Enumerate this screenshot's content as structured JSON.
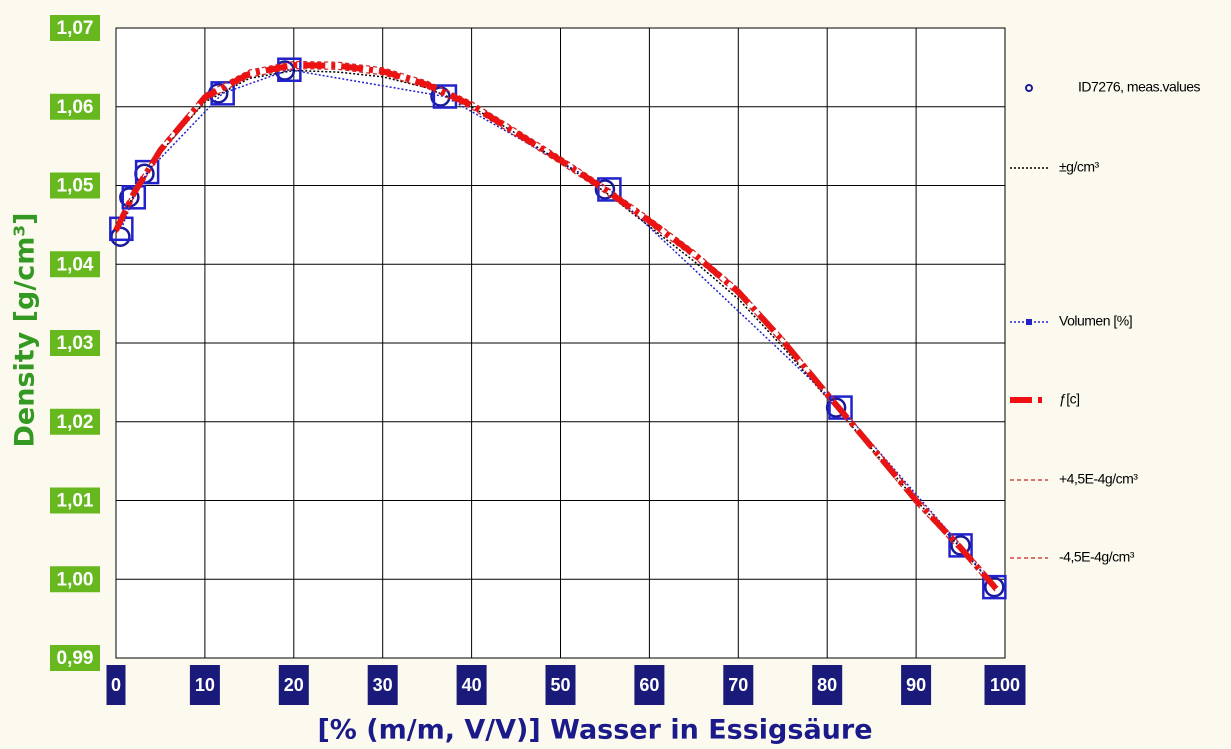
{
  "chart_data": {
    "type": "line",
    "xlabel": "[% (m/m, V/V)] Wasser in Essigsäure",
    "ylabel": "Density [g/cm³]",
    "xlim": [
      0,
      100
    ],
    "ylim": [
      0.99,
      1.07
    ],
    "xticks": [
      0,
      10,
      20,
      30,
      40,
      50,
      60,
      70,
      80,
      90,
      100
    ],
    "yticks": [
      {
        "value": 0.99,
        "label": "0,99"
      },
      {
        "value": 1.0,
        "label": "1,00"
      },
      {
        "value": 1.01,
        "label": "1,01"
      },
      {
        "value": 1.02,
        "label": "1,02"
      },
      {
        "value": 1.03,
        "label": "1,03"
      },
      {
        "value": 1.04,
        "label": "1,04"
      },
      {
        "value": 1.05,
        "label": "1,05"
      },
      {
        "value": 1.06,
        "label": "1,06"
      },
      {
        "value": 1.07,
        "label": "1,07"
      }
    ],
    "grid": true,
    "legend": "right",
    "series": [
      {
        "name": "ID7276, meas.values",
        "color": "#1a1a9a",
        "marker": "circle",
        "line": "none",
        "x": [
          0.5,
          1.5,
          3.2,
          11.5,
          19,
          36.5,
          55,
          81,
          95,
          98.8
        ],
        "values": [
          1.0435,
          1.0485,
          1.0515,
          1.0617,
          1.0646,
          1.0613,
          1.0495,
          1.0218,
          1.0043,
          0.999
        ]
      },
      {
        "name": "±g/cm³",
        "color": "#000000",
        "marker": "none",
        "line": "dotted",
        "x": [
          0,
          2,
          5,
          10,
          15,
          20,
          25,
          30,
          35,
          40,
          45,
          50,
          55,
          60,
          65,
          70,
          75,
          80,
          85,
          90,
          95,
          99
        ],
        "values": [
          1.0443,
          1.0488,
          1.0542,
          1.0606,
          1.0636,
          1.0646,
          1.0644,
          1.0638,
          1.0624,
          1.06,
          1.0566,
          1.053,
          1.0492,
          1.0448,
          1.0404,
          1.0356,
          1.0295,
          1.023,
          1.0166,
          1.01,
          1.004,
          0.9988
        ]
      },
      {
        "name": "Volumen [%]",
        "color": "#2222cc",
        "marker": "square",
        "line": "dotted",
        "x": [
          0.6,
          2,
          3.5,
          12,
          19.5,
          37,
          55.5,
          81.5,
          95,
          98.8
        ],
        "values": [
          1.0445,
          1.0485,
          1.0517,
          1.0617,
          1.0647,
          1.0613,
          1.0495,
          1.0218,
          1.0043,
          0.999
        ]
      },
      {
        "name": "ƒ[c]",
        "color": "#ee1111",
        "marker": "none",
        "line": "dashed-thick",
        "x": [
          0,
          2,
          5,
          10,
          15,
          20,
          25,
          30,
          35,
          40,
          45,
          50,
          55,
          60,
          65,
          70,
          75,
          80,
          85,
          90,
          95,
          99
        ],
        "values": [
          1.0443,
          1.049,
          1.0545,
          1.0612,
          1.0642,
          1.0653,
          1.0652,
          1.0645,
          1.0628,
          1.0602,
          1.0567,
          1.0532,
          1.0495,
          1.0455,
          1.0413,
          1.0365,
          1.0303,
          1.0235,
          1.0168,
          1.01,
          1.004,
          0.9988
        ]
      },
      {
        "name": "+4,5E-4g/cm³",
        "color": "#cc2222",
        "marker": "none",
        "line": "dashed",
        "x": [
          0,
          2,
          5,
          10,
          15,
          20,
          25,
          30,
          35,
          40,
          45,
          50,
          55,
          60,
          65,
          70,
          75,
          80,
          85,
          90,
          95,
          99
        ],
        "values": [
          1.04475,
          1.04945,
          1.05495,
          1.06165,
          1.06465,
          1.06575,
          1.06565,
          1.06495,
          1.06325,
          1.06065,
          1.05715,
          1.05365,
          1.04995,
          1.04595,
          1.04175,
          1.03695,
          1.03075,
          1.02395,
          1.01725,
          1.01045,
          1.00445,
          0.99925
        ]
      },
      {
        "name": "-4,5E-4g/cm³",
        "color": "#cc2222",
        "marker": "none",
        "line": "dashed",
        "x": [
          0,
          2,
          5,
          10,
          15,
          20,
          25,
          30,
          35,
          40,
          45,
          50,
          55,
          60,
          65,
          70,
          75,
          80,
          85,
          90,
          95,
          99
        ],
        "values": [
          1.04385,
          1.04855,
          1.05405,
          1.06075,
          1.06375,
          1.06485,
          1.06475,
          1.06405,
          1.06235,
          1.05975,
          1.05625,
          1.05275,
          1.04905,
          1.04505,
          1.04085,
          1.03605,
          1.02985,
          1.02305,
          1.01635,
          1.00955,
          1.00355,
          0.99835
        ]
      }
    ]
  }
}
